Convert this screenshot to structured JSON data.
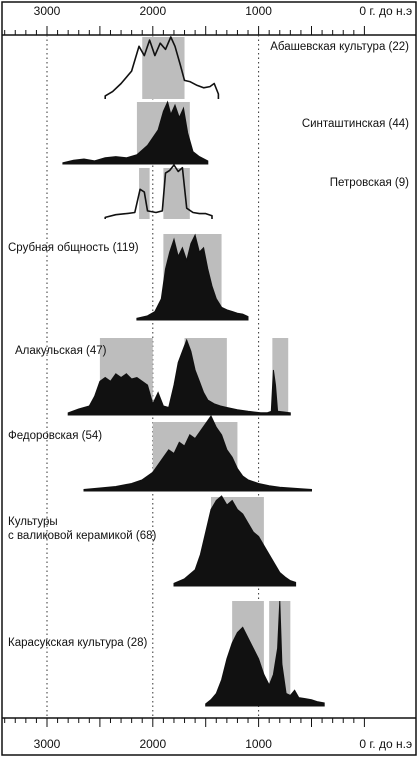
{
  "chart_data": {
    "type": "area",
    "x_axis": {
      "range": [
        3400,
        0
      ],
      "tick_values": [
        3000,
        2000,
        1000,
        0
      ],
      "tick_labels": [
        "3000",
        "2000",
        "1000",
        "0 г. до н.э"
      ],
      "minor_tick_step": 100,
      "gridlines": [
        3000,
        2000,
        1000
      ]
    },
    "colors": {
      "distribution": "#111111",
      "interval_box": "#bdbdbd",
      "grid": "#333333"
    },
    "series": [
      {
        "name": "Абашевская культура (22)",
        "fill": "outline",
        "interval_boxes": [
          [
            2100,
            1700
          ]
        ],
        "profile": [
          [
            2450,
            0.05
          ],
          [
            2380,
            0.12
          ],
          [
            2300,
            0.25
          ],
          [
            2200,
            0.45
          ],
          [
            2130,
            0.85
          ],
          [
            2080,
            0.7
          ],
          [
            2030,
            0.95
          ],
          [
            1980,
            0.7
          ],
          [
            1930,
            0.9
          ],
          [
            1880,
            0.8
          ],
          [
            1830,
            1.0
          ],
          [
            1790,
            0.85
          ],
          [
            1740,
            0.55
          ],
          [
            1700,
            0.3
          ],
          [
            1650,
            0.28
          ],
          [
            1580,
            0.22
          ],
          [
            1520,
            0.18
          ],
          [
            1460,
            0.2
          ],
          [
            1420,
            0.25
          ],
          [
            1380,
            0.08
          ]
        ]
      },
      {
        "name": "Синташтинская (44)",
        "fill": "solid",
        "interval_boxes": [
          [
            2150,
            1650
          ]
        ],
        "profile": [
          [
            2850,
            0.02
          ],
          [
            2750,
            0.06
          ],
          [
            2650,
            0.08
          ],
          [
            2550,
            0.05
          ],
          [
            2450,
            0.1
          ],
          [
            2350,
            0.12
          ],
          [
            2250,
            0.1
          ],
          [
            2150,
            0.15
          ],
          [
            2050,
            0.3
          ],
          [
            1950,
            0.55
          ],
          [
            1900,
            0.85
          ],
          [
            1860,
            1.0
          ],
          [
            1830,
            0.8
          ],
          [
            1790,
            0.95
          ],
          [
            1750,
            0.75
          ],
          [
            1710,
            0.9
          ],
          [
            1670,
            0.5
          ],
          [
            1620,
            0.2
          ],
          [
            1560,
            0.12
          ],
          [
            1480,
            0.05
          ]
        ]
      },
      {
        "name": "Петровская (9)",
        "fill": "outline",
        "interval_boxes": [
          [
            2130,
            2030
          ],
          [
            1900,
            1650
          ]
        ],
        "profile": [
          [
            2450,
            0.03
          ],
          [
            2350,
            0.08
          ],
          [
            2250,
            0.1
          ],
          [
            2170,
            0.12
          ],
          [
            2120,
            0.55
          ],
          [
            2080,
            0.5
          ],
          [
            2050,
            0.15
          ],
          [
            1970,
            0.12
          ],
          [
            1910,
            0.15
          ],
          [
            1880,
            0.85
          ],
          [
            1840,
            0.9
          ],
          [
            1800,
            1.0
          ],
          [
            1760,
            0.88
          ],
          [
            1720,
            0.95
          ],
          [
            1680,
            0.2
          ],
          [
            1620,
            0.12
          ],
          [
            1560,
            0.1
          ],
          [
            1500,
            0.1
          ],
          [
            1440,
            0.06
          ]
        ]
      },
      {
        "name": "Срубная общность (119)",
        "fill": "solid",
        "interval_boxes": [
          [
            1900,
            1350
          ]
        ],
        "profile": [
          [
            2150,
            0.02
          ],
          [
            2050,
            0.05
          ],
          [
            1980,
            0.1
          ],
          [
            1920,
            0.25
          ],
          [
            1880,
            0.6
          ],
          [
            1840,
            0.8
          ],
          [
            1800,
            0.95
          ],
          [
            1760,
            0.75
          ],
          [
            1720,
            0.85
          ],
          [
            1680,
            0.7
          ],
          [
            1640,
            0.9
          ],
          [
            1600,
            1.0
          ],
          [
            1560,
            0.8
          ],
          [
            1520,
            0.85
          ],
          [
            1480,
            0.6
          ],
          [
            1440,
            0.4
          ],
          [
            1400,
            0.25
          ],
          [
            1350,
            0.15
          ],
          [
            1300,
            0.12
          ],
          [
            1250,
            0.1
          ],
          [
            1200,
            0.08
          ],
          [
            1150,
            0.07
          ],
          [
            1100,
            0.04
          ]
        ]
      },
      {
        "name": "Алакульская (47)",
        "fill": "solid",
        "interval_boxes": [
          [
            2500,
            2000
          ],
          [
            1700,
            1300
          ],
          [
            870,
            720
          ]
        ],
        "profile": [
          [
            2800,
            0.03
          ],
          [
            2700,
            0.08
          ],
          [
            2600,
            0.12
          ],
          [
            2550,
            0.25
          ],
          [
            2500,
            0.45
          ],
          [
            2450,
            0.5
          ],
          [
            2400,
            0.45
          ],
          [
            2350,
            0.55
          ],
          [
            2300,
            0.5
          ],
          [
            2250,
            0.55
          ],
          [
            2200,
            0.48
          ],
          [
            2150,
            0.5
          ],
          [
            2100,
            0.45
          ],
          [
            2050,
            0.4
          ],
          [
            2000,
            0.15
          ],
          [
            1950,
            0.3
          ],
          [
            1900,
            0.12
          ],
          [
            1850,
            0.1
          ],
          [
            1800,
            0.4
          ],
          [
            1760,
            0.7
          ],
          [
            1720,
            0.85
          ],
          [
            1680,
            1.0
          ],
          [
            1640,
            0.85
          ],
          [
            1600,
            0.6
          ],
          [
            1560,
            0.45
          ],
          [
            1520,
            0.3
          ],
          [
            1480,
            0.2
          ],
          [
            1420,
            0.15
          ],
          [
            1360,
            0.12
          ],
          [
            1300,
            0.1
          ],
          [
            1200,
            0.07
          ],
          [
            1100,
            0.05
          ],
          [
            980,
            0.03
          ],
          [
            920,
            0.03
          ],
          [
            880,
            0.05
          ],
          [
            860,
            0.6
          ],
          [
            840,
            0.4
          ],
          [
            820,
            0.05
          ],
          [
            760,
            0.04
          ],
          [
            700,
            0.03
          ]
        ]
      },
      {
        "name": "Федоровская (54)",
        "fill": "solid",
        "interval_boxes": [
          [
            2000,
            1200
          ]
        ],
        "profile": [
          [
            2650,
            0.02
          ],
          [
            2500,
            0.04
          ],
          [
            2350,
            0.06
          ],
          [
            2200,
            0.1
          ],
          [
            2100,
            0.15
          ],
          [
            2000,
            0.25
          ],
          [
            1950,
            0.35
          ],
          [
            1900,
            0.45
          ],
          [
            1850,
            0.55
          ],
          [
            1800,
            0.5
          ],
          [
            1750,
            0.65
          ],
          [
            1700,
            0.6
          ],
          [
            1650,
            0.75
          ],
          [
            1600,
            0.7
          ],
          [
            1550,
            0.8
          ],
          [
            1500,
            0.9
          ],
          [
            1450,
            1.0
          ],
          [
            1400,
            0.85
          ],
          [
            1350,
            0.75
          ],
          [
            1300,
            0.55
          ],
          [
            1250,
            0.45
          ],
          [
            1200,
            0.3
          ],
          [
            1150,
            0.2
          ],
          [
            1100,
            0.15
          ],
          [
            1000,
            0.1
          ],
          [
            900,
            0.07
          ],
          [
            800,
            0.05
          ],
          [
            700,
            0.04
          ],
          [
            600,
            0.03
          ],
          [
            500,
            0.02
          ]
        ]
      },
      {
        "name": "Культуры с валиковой керамикой (68)",
        "fill": "solid",
        "interval_boxes": [
          [
            1450,
            950
          ]
        ],
        "profile": [
          [
            1800,
            0.03
          ],
          [
            1700,
            0.08
          ],
          [
            1600,
            0.18
          ],
          [
            1550,
            0.35
          ],
          [
            1500,
            0.6
          ],
          [
            1450,
            0.85
          ],
          [
            1400,
            0.95
          ],
          [
            1350,
            1.0
          ],
          [
            1300,
            0.9
          ],
          [
            1250,
            0.95
          ],
          [
            1200,
            0.85
          ],
          [
            1150,
            0.8
          ],
          [
            1100,
            0.7
          ],
          [
            1050,
            0.6
          ],
          [
            1000,
            0.55
          ],
          [
            950,
            0.45
          ],
          [
            900,
            0.35
          ],
          [
            850,
            0.25
          ],
          [
            800,
            0.15
          ],
          [
            750,
            0.1
          ],
          [
            700,
            0.06
          ],
          [
            650,
            0.04
          ]
        ]
      },
      {
        "name": "Карасукская культура (28)",
        "fill": "solid",
        "interval_boxes": [
          [
            1250,
            950
          ],
          [
            900,
            700
          ]
        ],
        "profile": [
          [
            1500,
            0.02
          ],
          [
            1450,
            0.06
          ],
          [
            1400,
            0.12
          ],
          [
            1350,
            0.25
          ],
          [
            1300,
            0.45
          ],
          [
            1250,
            0.6
          ],
          [
            1200,
            0.7
          ],
          [
            1150,
            0.75
          ],
          [
            1100,
            0.65
          ],
          [
            1050,
            0.55
          ],
          [
            1000,
            0.45
          ],
          [
            950,
            0.3
          ],
          [
            900,
            0.2
          ],
          [
            860,
            0.3
          ],
          [
            820,
            0.55
          ],
          [
            800,
            1.0
          ],
          [
            780,
            0.4
          ],
          [
            740,
            0.12
          ],
          [
            700,
            0.1
          ],
          [
            660,
            0.15
          ],
          [
            620,
            0.08
          ],
          [
            560,
            0.07
          ],
          [
            500,
            0.06
          ],
          [
            440,
            0.04
          ],
          [
            380,
            0.03
          ]
        ]
      }
    ]
  }
}
